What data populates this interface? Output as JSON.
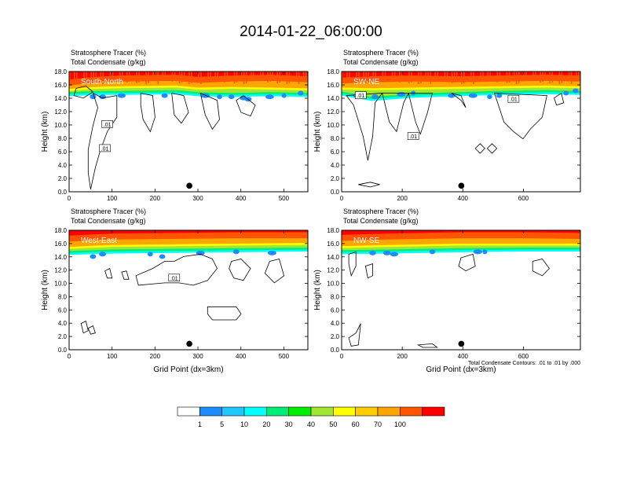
{
  "title": "2014-01-22_06:00:00",
  "chart_data": {
    "type": "heatmap",
    "title": "2014-01-22_06:00:00",
    "variables": {
      "shaded": "Stratosphere Tracer   (%)",
      "contoured": "Total Condensate   (g/kg)"
    },
    "contour_note": "Total Condensate Contours: .01 to .01 by .000",
    "ylabel": "Height (km)",
    "xlabel": "Grid Point (dx=3km)",
    "yticks": [
      "0.0",
      "2.0",
      "4.0",
      "6.0",
      "8.0",
      "10.0",
      "12.0",
      "14.0",
      "16.0",
      "18.0"
    ],
    "ylim": [
      0,
      18
    ],
    "colorbar": {
      "colors": [
        "#ffffff",
        "#1e8cff",
        "#1ec8ff",
        "#00ffff",
        "#00ee78",
        "#00ee00",
        "#a0e632",
        "#ffff00",
        "#ffcc00",
        "#ffa500",
        "#ff5500",
        "#ff0000"
      ],
      "labels": [
        "1",
        "5",
        "10",
        "20",
        "30",
        "40",
        "50",
        "60",
        "70",
        "100"
      ]
    },
    "panels": [
      {
        "label": "South-North",
        "xlim": [
          0,
          556
        ],
        "xticks": [
          "0",
          "100",
          "200",
          "300",
          "400",
          "500"
        ],
        "xtick_values": [
          0,
          100,
          200,
          300,
          400,
          500
        ],
        "contour_labels": [
          ".01",
          ".01"
        ],
        "marker_x": 280,
        "show_xlabel": false,
        "heights": [
          {
            "x": 0,
            "tracer100": 15.9,
            "tracer70": 15.4,
            "low50": 14.9
          },
          {
            "x": 60,
            "tracer100": 16.3,
            "tracer70": 15.7,
            "low50": 15.1
          },
          {
            "x": 120,
            "tracer100": 16.5,
            "tracer70": 15.8,
            "low50": 15.1
          },
          {
            "x": 250,
            "tracer100": 16.6,
            "tracer70": 15.9,
            "low50": 15.2
          },
          {
            "x": 300,
            "tracer100": 16.3,
            "tracer70": 15.6,
            "low50": 14.9
          },
          {
            "x": 380,
            "tracer100": 16.5,
            "tracer70": 15.7,
            "low50": 14.8
          },
          {
            "x": 470,
            "tracer100": 16.6,
            "tracer70": 15.6,
            "low50": 14.9
          },
          {
            "x": 556,
            "tracer100": 16.4,
            "tracer70": 15.5,
            "low50": 14.8
          }
        ]
      },
      {
        "label": "SW-NE",
        "xlim": [
          0,
          788
        ],
        "xticks": [
          "0",
          "200",
          "400",
          "600"
        ],
        "xtick_values": [
          0,
          200,
          400,
          600
        ],
        "contour_labels": [
          ".01",
          ".01",
          ".01"
        ],
        "marker_x": 395,
        "show_xlabel": false,
        "heights": [
          {
            "x": 0,
            "tracer100": 16.2,
            "tracer70": 15.6,
            "low50": 15.0
          },
          {
            "x": 100,
            "tracer100": 16.4,
            "tracer70": 15.5,
            "low50": 14.2
          },
          {
            "x": 240,
            "tracer100": 16.5,
            "tracer70": 15.6,
            "low50": 14.7
          },
          {
            "x": 380,
            "tracer100": 16.4,
            "tracer70": 15.7,
            "low50": 14.9
          },
          {
            "x": 520,
            "tracer100": 16.5,
            "tracer70": 15.8,
            "low50": 15.1
          },
          {
            "x": 680,
            "tracer100": 16.6,
            "tracer70": 15.9,
            "low50": 15.2
          },
          {
            "x": 788,
            "tracer100": 16.5,
            "tracer70": 15.8,
            "low50": 15.1
          }
        ]
      },
      {
        "label": "West-East",
        "xlim": [
          0,
          556
        ],
        "xticks": [
          "0",
          "100",
          "200",
          "300",
          "400",
          "500"
        ],
        "xtick_values": [
          0,
          100,
          200,
          300,
          400,
          500
        ],
        "contour_labels": [
          ".01"
        ],
        "marker_x": 280,
        "show_xlabel": true,
        "heights": [
          {
            "x": 0,
            "tracer100": 16.3,
            "tracer70": 15.5,
            "low50": 14.9
          },
          {
            "x": 100,
            "tracer100": 16.6,
            "tracer70": 15.8,
            "low50": 15.1
          },
          {
            "x": 250,
            "tracer100": 16.7,
            "tracer70": 15.9,
            "low50": 15.2
          },
          {
            "x": 400,
            "tracer100": 16.8,
            "tracer70": 16.0,
            "low50": 15.3
          },
          {
            "x": 556,
            "tracer100": 16.8,
            "tracer70": 16.1,
            "low50": 15.4
          }
        ]
      },
      {
        "label": "NW-SE",
        "xlim": [
          0,
          788
        ],
        "xticks": [
          "0",
          "200",
          "400",
          "600"
        ],
        "xtick_values": [
          0,
          200,
          400,
          600
        ],
        "contour_labels": [],
        "marker_x": 395,
        "show_xlabel": true,
        "heights": [
          {
            "x": 0,
            "tracer100": 16.4,
            "tracer70": 15.6,
            "low50": 15.0
          },
          {
            "x": 150,
            "tracer100": 16.6,
            "tracer70": 15.8,
            "low50": 15.1
          },
          {
            "x": 400,
            "tracer100": 16.8,
            "tracer70": 16.0,
            "low50": 15.3
          },
          {
            "x": 600,
            "tracer100": 16.8,
            "tracer70": 16.0,
            "low50": 15.4
          },
          {
            "x": 788,
            "tracer100": 16.7,
            "tracer70": 16.0,
            "low50": 15.4
          }
        ]
      }
    ]
  }
}
